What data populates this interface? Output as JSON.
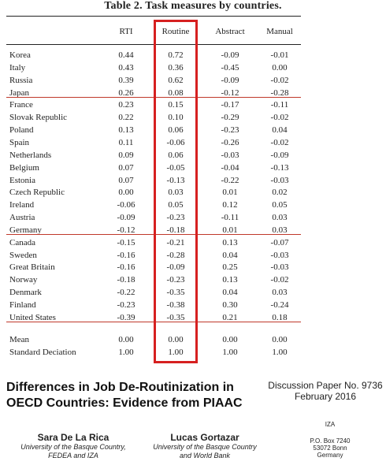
{
  "table": {
    "title": "Table 2. Task measures by countries.",
    "headers": [
      "RTI",
      "Routine",
      "Abstract",
      "Manual"
    ],
    "rows": [
      {
        "country": "Korea",
        "values": [
          "0.44",
          "0.72",
          "-0.09",
          "-0.01"
        ]
      },
      {
        "country": "Italy",
        "values": [
          "0.43",
          "0.36",
          "-0.45",
          "0.00"
        ]
      },
      {
        "country": "Russia",
        "values": [
          "0.39",
          "0.62",
          "-0.09",
          "-0.02"
        ]
      },
      {
        "country": "Japan",
        "values": [
          "0.26",
          "0.08",
          "-0.12",
          "-0.28"
        ]
      },
      {
        "country": "France",
        "values": [
          "0.23",
          "0.15",
          "-0.17",
          "-0.11"
        ]
      },
      {
        "country": "Slovak Republic",
        "values": [
          "0.22",
          "0.10",
          "-0.29",
          "-0.02"
        ]
      },
      {
        "country": "Poland",
        "values": [
          "0.13",
          "0.06",
          "-0.23",
          "0.04"
        ]
      },
      {
        "country": "Spain",
        "values": [
          "0.11",
          "-0.06",
          "-0.26",
          "-0.02"
        ]
      },
      {
        "country": "Netherlands",
        "values": [
          "0.09",
          "0.06",
          "-0.03",
          "-0.09"
        ]
      },
      {
        "country": "Belgium",
        "values": [
          "0.07",
          "-0.05",
          "-0.04",
          "-0.13"
        ]
      },
      {
        "country": "Estonia",
        "values": [
          "0.07",
          "-0.13",
          "-0.22",
          "-0.03"
        ]
      },
      {
        "country": "Czech Republic",
        "values": [
          "0.00",
          "0.03",
          "0.01",
          "0.02"
        ]
      },
      {
        "country": "Ireland",
        "values": [
          "-0.06",
          "0.05",
          "0.12",
          "0.05"
        ]
      },
      {
        "country": "Austria",
        "values": [
          "-0.09",
          "-0.23",
          "-0.11",
          "0.03"
        ]
      },
      {
        "country": "Germany",
        "values": [
          "-0.12",
          "-0.18",
          "0.01",
          "0.03"
        ]
      },
      {
        "country": "Canada",
        "values": [
          "-0.15",
          "-0.21",
          "0.13",
          "-0.07"
        ]
      },
      {
        "country": "Sweden",
        "values": [
          "-0.16",
          "-0.28",
          "0.04",
          "-0.03"
        ]
      },
      {
        "country": "Great Britain",
        "values": [
          "-0.16",
          "-0.09",
          "0.25",
          "-0.03"
        ]
      },
      {
        "country": "Norway",
        "values": [
          "-0.18",
          "-0.23",
          "0.13",
          "-0.02"
        ]
      },
      {
        "country": "Denmark",
        "values": [
          "-0.22",
          "-0.35",
          "0.04",
          "0.03"
        ]
      },
      {
        "country": "Finland",
        "values": [
          "-0.23",
          "-0.38",
          "0.30",
          "-0.24"
        ]
      },
      {
        "country": "United States",
        "values": [
          "-0.39",
          "-0.35",
          "0.21",
          "0.18"
        ]
      },
      {
        "country": "Mean",
        "values": [
          "0.00",
          "0.00",
          "0.00",
          "0.00"
        ]
      },
      {
        "country": "Standard Deciation",
        "values": [
          "1.00",
          "1.00",
          "1.00",
          "1.00"
        ]
      }
    ],
    "highlight_color": "#d62020"
  },
  "paper": {
    "title_line1": "Differences in Job De-Routinization in",
    "title_line2": "OECD Countries: Evidence from PIAAC",
    "series_line1": "Discussion Paper No. 9736",
    "series_line2": "February 2016"
  },
  "authors": [
    {
      "name": "Sara De La Rica",
      "aff1": "University of the Basque Country,",
      "aff2": "FEDEA and IZA"
    },
    {
      "name": "Lucas Gortazar",
      "aff1": "University of the Basque Country",
      "aff2": "and World Bank"
    }
  ],
  "iza": {
    "name": "IZA",
    "line1": "P.O. Box 7240",
    "line2": "53072 Bonn",
    "line3": "Germany"
  }
}
